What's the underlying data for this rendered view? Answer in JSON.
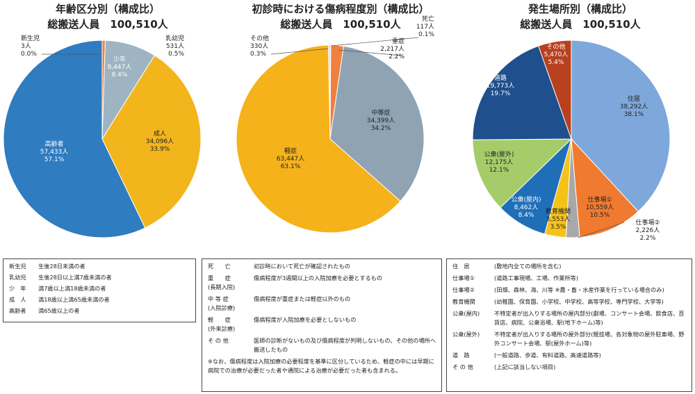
{
  "chart_data": [
    {
      "type": "pie",
      "title": "年齢区分別（構成比）",
      "subtitle": "総搬送人員　100,510人",
      "slices": [
        {
          "name": "新生児",
          "count": "3人",
          "pct": "0.0%",
          "value": 0.003,
          "color": "#b0d0e8"
        },
        {
          "name": "乳幼児",
          "count": "531人",
          "pct": "0.5%",
          "value": 0.5,
          "color": "#f08040"
        },
        {
          "name": "少年",
          "count": "8,447人",
          "pct": "8.4%",
          "value": 8.4,
          "color": "#9fb4c2"
        },
        {
          "name": "成人",
          "count": "34,096人",
          "pct": "33.9%",
          "value": 33.9,
          "color": "#f2b51c"
        },
        {
          "name": "高齢者",
          "count": "57,433人",
          "pct": "57.1%",
          "value": 57.1,
          "color": "#2f7cc0"
        }
      ]
    },
    {
      "type": "pie",
      "title": "初診時における傷病程度別（構成比）",
      "subtitle": "総搬送人員　100,510人",
      "slices": [
        {
          "name": "死亡",
          "count": "117人",
          "pct": "0.1%",
          "value": 0.1,
          "color": "#e06030"
        },
        {
          "name": "重症",
          "count": "2,217人",
          "pct": "2.2%",
          "value": 2.2,
          "color": "#f08040"
        },
        {
          "name": "中等症",
          "count": "34,399人",
          "pct": "34.2%",
          "value": 34.2,
          "color": "#8fa3b3"
        },
        {
          "name": "軽症",
          "count": "63,447人",
          "pct": "63.1%",
          "value": 63.1,
          "color": "#f5b21a"
        },
        {
          "name": "その他",
          "count": "330人",
          "pct": "0.3%",
          "value": 0.3,
          "color": "#c8d4e0"
        }
      ]
    },
    {
      "type": "pie",
      "title": "発生場所別（構成比）",
      "subtitle": "総搬送人員　100,510人",
      "slices": [
        {
          "name": "住居",
          "count": "38,292人",
          "pct": "38.1%",
          "value": 38.1,
          "color": "#7ea8dc"
        },
        {
          "name": "仕事場①",
          "count": "10,559人",
          "pct": "10.5%",
          "value": 10.5,
          "color": "#f07a30"
        },
        {
          "name": "仕事場②",
          "count": "2,226人",
          "pct": "2.2%",
          "value": 2.2,
          "color": "#a8a8a8"
        },
        {
          "name": "教育機関",
          "count": "3,553人",
          "pct": "3.5%",
          "value": 3.5,
          "color": "#f6c21a"
        },
        {
          "name": "公衆(屋内)",
          "count": "8,462人",
          "pct": "8.4%",
          "value": 8.4,
          "color": "#1f6fb8"
        },
        {
          "name": "公衆(屋外)",
          "count": "12,175人",
          "pct": "12.1%",
          "value": 12.1,
          "color": "#a6cc6a"
        },
        {
          "name": "道路",
          "count": "19,773人",
          "pct": "19.7%",
          "value": 19.7,
          "color": "#1f4f8c"
        },
        {
          "name": "その他",
          "count": "5,470人",
          "pct": "5.4%",
          "value": 5.4,
          "color": "#b8401e"
        }
      ]
    }
  ],
  "legend_age": [
    {
      "term": "新生児",
      "def": "生後28日未満の者"
    },
    {
      "term": "乳幼児",
      "def": "生後28日以上満7歳未満の者"
    },
    {
      "term": "少　年",
      "def": "満7歳以上満18歳未満の者"
    },
    {
      "term": "成　人",
      "def": "満18歳以上満65歳未満の者"
    },
    {
      "term": "高齢者",
      "def": "満65歳以上の者"
    }
  ],
  "legend_severity": [
    {
      "term": "死　　亡",
      "sub": "",
      "def": "初診時において死亡が確認されたもの"
    },
    {
      "term": "重　　症",
      "sub": "(長期入院)",
      "def": "傷病程度が3週間以上の入院加療を必要とするもの"
    },
    {
      "term": "中 等 症",
      "sub": "(入院診療)",
      "def": "傷病程度が重症または軽症以外のもの"
    },
    {
      "term": "軽　　症",
      "sub": "(外来診療)",
      "def": "傷病程度が入院加療を必要としないもの"
    },
    {
      "term": "そ の 他",
      "sub": "",
      "def": "医師の診断がないもの及び傷病程度が判明しないもの、その他の場所へ搬送したもの"
    }
  ],
  "legend_severity_note": "※なお、傷病程度は入院加療の必要程度を基準に区分しているため、軽症の中には早期に病院での治療が必要だった者や通院による治療が必要だった者も含まれる。",
  "legend_place": [
    {
      "term": "住　居",
      "def": "(敷地内全ての場所を含む)"
    },
    {
      "term": "仕事場①",
      "def": "(道路工事現場、工場、作業所等)"
    },
    {
      "term": "仕事場②",
      "def": "(田畑、森林、海、川等 ※農・畜・水産作業を行っている場合のみ)"
    },
    {
      "term": "教育機関",
      "def": "(幼稚園、保育園、小学校、中学校、高等学校、専門学校、大学等)"
    },
    {
      "term": "公衆(屋内)",
      "def": "不特定者が出入りする場所の屋内部分(劇場、コンサート会場、飲食店、百貨店、病院、公衆浴場、駅(地下ホーム)等)"
    },
    {
      "term": "公衆(屋外)",
      "def": "不特定者が出入りする場所の屋外部分(競技場、各対象物の屋外駐車場、野外コンサート会場、駅(屋外ホーム)等)"
    },
    {
      "term": "道　路",
      "def": "(一般道路、歩道、有料道路、高速道路等)"
    },
    {
      "term": "そ の 他",
      "def": "(上記に該当しない項目)"
    }
  ]
}
